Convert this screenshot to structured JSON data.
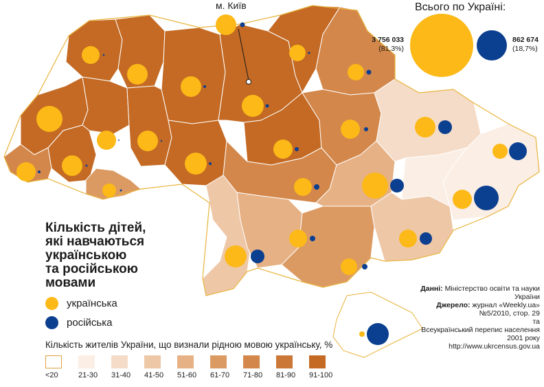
{
  "title_lines": [
    "Кількість дітей,",
    "які навчаються",
    "українською",
    "та російською",
    "мовами"
  ],
  "legend": {
    "ukrainian": {
      "label": "українська",
      "color": "#fcb917"
    },
    "russian": {
      "label": "російська",
      "color": "#0b3f8f"
    }
  },
  "kyiv_label": "м. Київ",
  "total": {
    "heading": "Всього по Україні:",
    "ukrainian_value": "3 756 033",
    "ukrainian_share": "(81,3%)",
    "russian_value": "862 674",
    "russian_share": "(18,7%)"
  },
  "source": {
    "data_label": "Данні:",
    "data_text": "Міністерство освіти та науки України",
    "source_label": "Джерело:",
    "source_text": "журнал «Weekly.ua» №5/2010, стор. 29",
    "and": "та",
    "census": "Всеукраїнський перепис населення 2001 року",
    "url": "http://www.ukrcensus.gov.ua"
  },
  "scale": {
    "title": "Кількість жителів України, що визнали рідною мовою українську, %",
    "classes": [
      {
        "label": "<20",
        "color": "#ffffff"
      },
      {
        "label": "21-30",
        "color": "#fbeee4"
      },
      {
        "label": "31-40",
        "color": "#f5dcc8"
      },
      {
        "label": "41-50",
        "color": "#eec7a7"
      },
      {
        "label": "51-60",
        "color": "#e6b184"
      },
      {
        "label": "61-70",
        "color": "#dc9a63"
      },
      {
        "label": "71-80",
        "color": "#d3874a"
      },
      {
        "label": "81-90",
        "color": "#cb7737"
      },
      {
        "label": "91-100",
        "color": "#c46a24"
      }
    ]
  },
  "colors": {
    "border": "#e8b33a",
    "regionLine": "#ffffff"
  }
}
